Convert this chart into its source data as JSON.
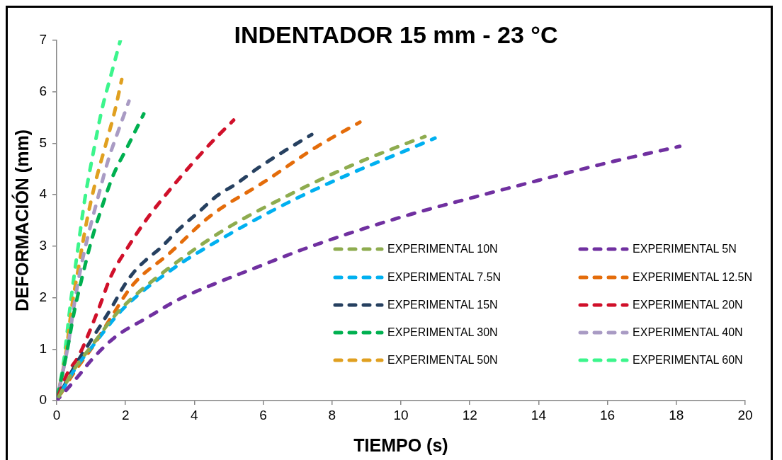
{
  "chart_data": {
    "type": "line",
    "title": "INDENTADOR 15 mm - 23 °C",
    "xlabel": "TIEMPO (s)",
    "ylabel": "DEFORMACIÓN (mm)",
    "xlim": [
      0,
      20
    ],
    "xticks": [
      0,
      2,
      4,
      6,
      8,
      10,
      12,
      14,
      16,
      18,
      20
    ],
    "ylim": [
      0,
      7
    ],
    "yticks": [
      0,
      1,
      2,
      3,
      4,
      5,
      6,
      7
    ],
    "grid": false,
    "legend": "bottom right",
    "marker": "none",
    "line_style": "dashed",
    "series": [
      {
        "name": "EXPERIMENTAL 10N",
        "color": "#8eac4f",
        "x": [
          0,
          0.5,
          1.07,
          1.65,
          2.06,
          3.23,
          4.8,
          6.85,
          8.5,
          10.29,
          10.7
        ],
        "values": [
          0,
          0.6,
          1.11,
          1.62,
          1.91,
          2.56,
          3.29,
          4.03,
          4.55,
          5.03,
          5.13
        ]
      },
      {
        "name": "EXPERIMENTAL 5N",
        "color": "#7030a0",
        "x": [
          0,
          0.3,
          0.66,
          1.0,
          1.71,
          2.63,
          3.5,
          4.63,
          5.7,
          7.0,
          8.5,
          10.29,
          12,
          14,
          16,
          18.1
        ],
        "values": [
          0,
          0.22,
          0.5,
          0.78,
          1.24,
          1.61,
          1.95,
          2.28,
          2.56,
          2.9,
          3.25,
          3.62,
          3.93,
          4.28,
          4.62,
          4.94
        ]
      },
      {
        "name": "EXPERIMENTAL 7.5N",
        "color": "#00b0f0",
        "x": [
          0,
          0.5,
          1.07,
          1.91,
          3.29,
          4.8,
          6.85,
          8.5,
          10.29,
          10.99
        ],
        "values": [
          0,
          0.58,
          1.08,
          1.77,
          2.52,
          3.15,
          3.89,
          4.4,
          4.9,
          5.1
        ]
      },
      {
        "name": "EXPERIMENTAL 12.5N",
        "color": "#e46c0a",
        "x": [
          0,
          0.51,
          1.07,
          1.65,
          2.2,
          3.29,
          4.47,
          6.03,
          7.55,
          8.81
        ],
        "values": [
          0,
          0.55,
          1.07,
          1.69,
          2.24,
          2.87,
          3.59,
          4.25,
          4.93,
          5.41
        ]
      },
      {
        "name": "EXPERIMENTAL 15N",
        "color": "#264060",
        "x": [
          0,
          0.51,
          1.0,
          1.65,
          1.92,
          2.26,
          2.61,
          3.02,
          3.57,
          4.12,
          4.66,
          5.21,
          5.83,
          6.45,
          7.41
        ],
        "values": [
          0,
          0.65,
          1.17,
          1.87,
          2.19,
          2.51,
          2.74,
          2.97,
          3.34,
          3.66,
          3.98,
          4.21,
          4.51,
          4.78,
          5.17
        ]
      },
      {
        "name": "EXPERIMENTAL 20N",
        "color": "#d0102a",
        "x": [
          0,
          0.29,
          0.65,
          1.2,
          1.58,
          2.06,
          2.61,
          3.43,
          4.39,
          5.14
        ],
        "values": [
          0,
          0.5,
          0.88,
          1.75,
          2.42,
          2.97,
          3.52,
          4.21,
          4.94,
          5.45
        ]
      },
      {
        "name": "EXPERIMENTAL 30N",
        "color": "#00b050",
        "x": [
          0,
          0.29,
          0.51,
          0.76,
          1.01,
          1.3,
          1.65,
          2.04,
          2.53
        ],
        "values": [
          0,
          0.92,
          1.73,
          2.45,
          3.11,
          3.73,
          4.39,
          4.91,
          5.57
        ]
      },
      {
        "name": "EXPERIMENTAL 40N",
        "color": "#a99bc4",
        "x": [
          0,
          0.33,
          0.51,
          0.72,
          0.91,
          1.19,
          1.5,
          1.79,
          2.1
        ],
        "values": [
          0,
          1.07,
          1.87,
          2.64,
          3.2,
          3.92,
          4.68,
          5.24,
          5.82
        ]
      },
      {
        "name": "EXPERIMENTAL 50N",
        "color": "#e0a020",
        "x": [
          0,
          0.27,
          0.43,
          0.66,
          0.86,
          1.11,
          1.44,
          1.69,
          1.89
        ],
        "values": [
          0,
          0.92,
          1.77,
          2.68,
          3.44,
          4.2,
          5.01,
          5.63,
          6.24
        ]
      },
      {
        "name": "EXPERIMENTAL 60N",
        "color": "#3cf58c",
        "x": [
          0,
          0.19,
          0.41,
          0.62,
          0.82,
          1.05,
          1.32,
          1.58,
          1.85
        ],
        "values": [
          0,
          0.69,
          1.93,
          2.97,
          3.92,
          4.77,
          5.67,
          6.33,
          7.0
        ]
      }
    ]
  }
}
